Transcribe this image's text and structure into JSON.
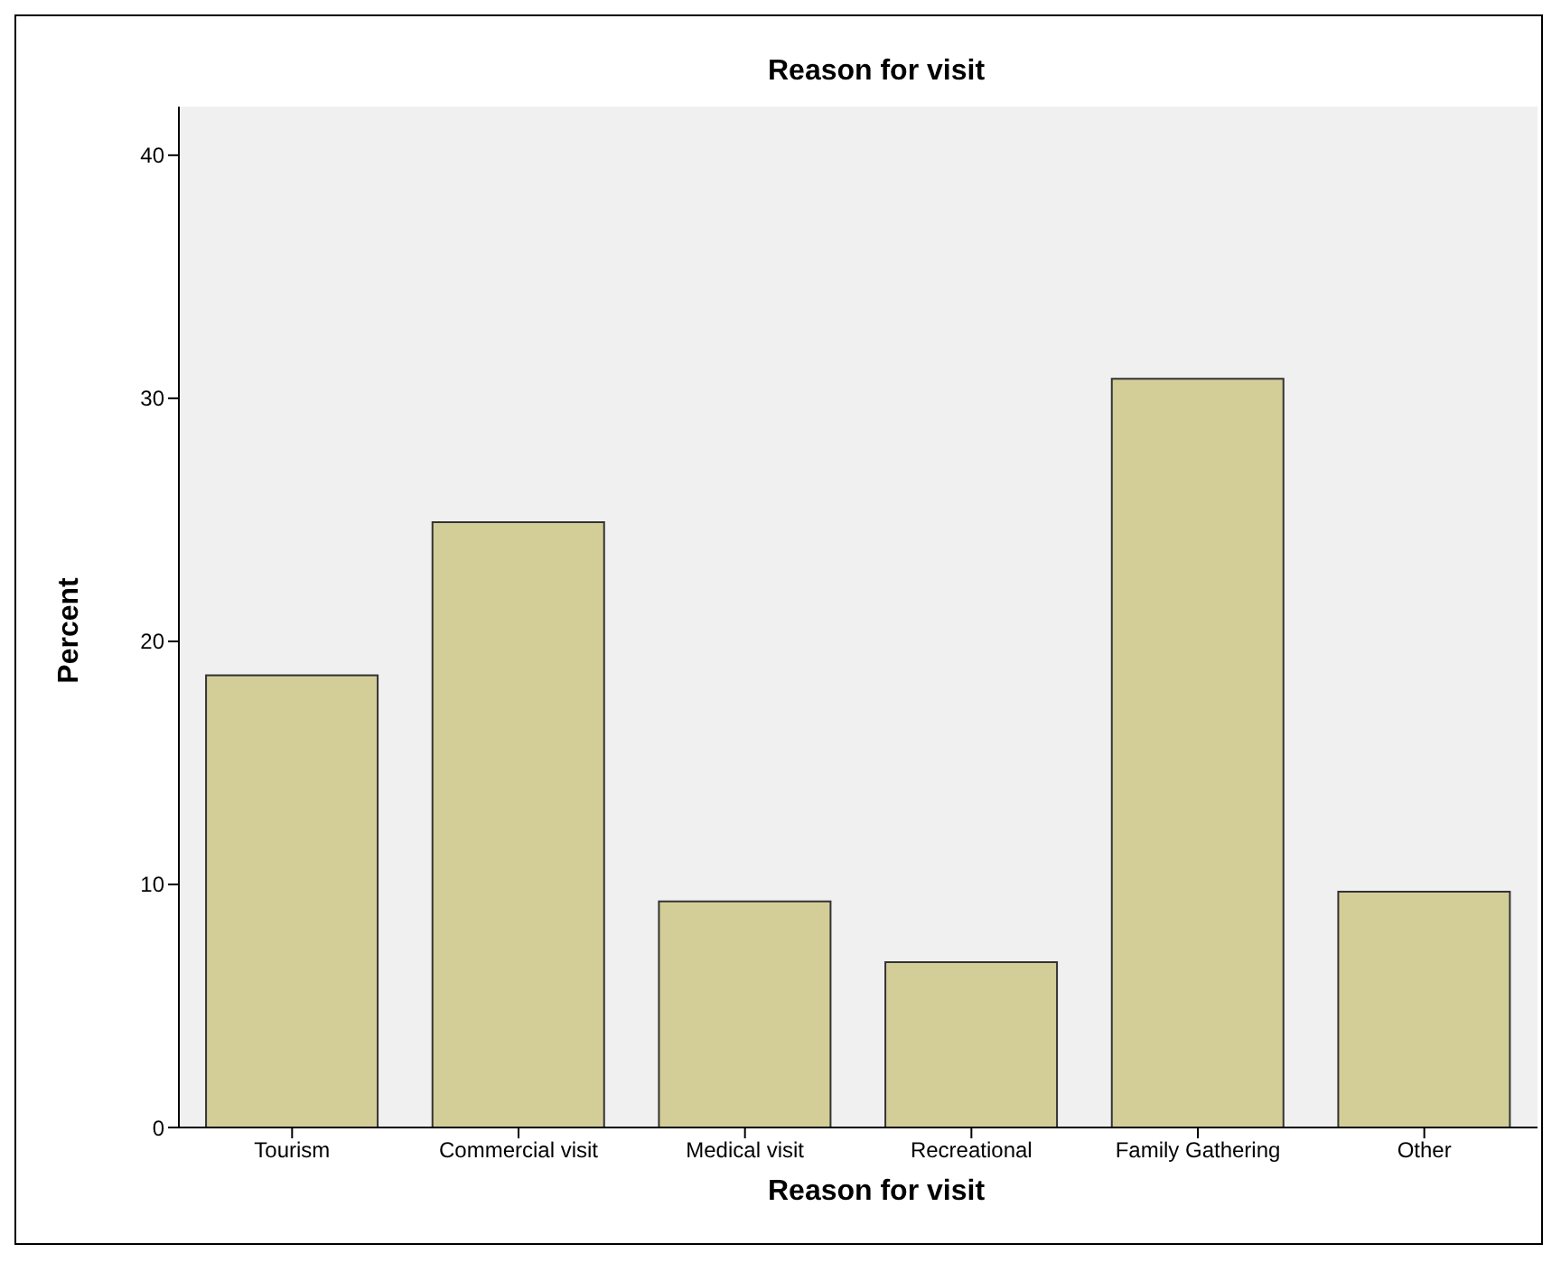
{
  "chart_data": {
    "type": "bar",
    "title": "Reason for visit",
    "xlabel": "Reason for visit",
    "ylabel": "Percent",
    "categories": [
      "Tourism",
      "Commercial visit",
      "Medical visit",
      "Recreational",
      "Family Gathering",
      "Other"
    ],
    "values": [
      18.6,
      24.9,
      9.3,
      6.8,
      30.8,
      9.7
    ],
    "color": "#d3cd98",
    "ylim": [
      0,
      42
    ],
    "yticks": [
      0,
      10,
      20,
      30,
      40
    ]
  }
}
